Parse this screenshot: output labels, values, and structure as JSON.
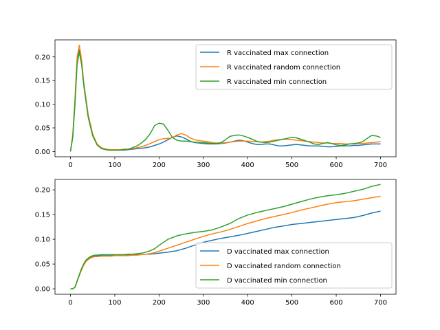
{
  "chart_data": [
    {
      "type": "line",
      "title": "",
      "xlabel": "",
      "ylabel": "",
      "xlim": [
        -35,
        735
      ],
      "ylim": [
        -0.011,
        0.236
      ],
      "xticks": [
        0,
        100,
        200,
        300,
        400,
        500,
        600,
        700
      ],
      "yticks": [
        0.0,
        0.05,
        0.1,
        0.15,
        0.2
      ],
      "ytick_labels": [
        "0.00",
        "0.05",
        "0.10",
        "0.15",
        "0.20"
      ],
      "grid": false,
      "legend_position": "upper right",
      "series": [
        {
          "name": "R vaccinated max connection",
          "color": "#1f77b4",
          "x": [
            0,
            5,
            10,
            15,
            20,
            25,
            30,
            40,
            50,
            60,
            70,
            80,
            90,
            100,
            110,
            120,
            130,
            140,
            150,
            160,
            170,
            180,
            190,
            200,
            210,
            220,
            230,
            240,
            250,
            260,
            270,
            280,
            290,
            300,
            310,
            320,
            330,
            340,
            350,
            360,
            370,
            380,
            390,
            400,
            410,
            420,
            430,
            440,
            450,
            460,
            470,
            480,
            490,
            500,
            510,
            520,
            530,
            540,
            550,
            560,
            570,
            580,
            590,
            600,
            610,
            620,
            630,
            640,
            650,
            660,
            670,
            680,
            690,
            700
          ],
          "values": [
            0.0,
            0.03,
            0.1,
            0.19,
            0.215,
            0.19,
            0.14,
            0.075,
            0.035,
            0.015,
            0.007,
            0.004,
            0.003,
            0.003,
            0.003,
            0.003,
            0.004,
            0.005,
            0.006,
            0.007,
            0.008,
            0.01,
            0.013,
            0.016,
            0.02,
            0.025,
            0.03,
            0.033,
            0.031,
            0.027,
            0.022,
            0.019,
            0.018,
            0.017,
            0.016,
            0.016,
            0.016,
            0.017,
            0.018,
            0.02,
            0.022,
            0.024,
            0.023,
            0.02,
            0.017,
            0.015,
            0.015,
            0.016,
            0.016,
            0.014,
            0.012,
            0.012,
            0.013,
            0.014,
            0.015,
            0.014,
            0.013,
            0.012,
            0.012,
            0.012,
            0.011,
            0.01,
            0.01,
            0.011,
            0.012,
            0.012,
            0.012,
            0.013,
            0.013,
            0.014,
            0.015,
            0.016,
            0.016,
            0.016
          ]
        },
        {
          "name": "R vaccinated random connection",
          "color": "#ff7f0e",
          "x": [
            0,
            5,
            10,
            15,
            20,
            25,
            30,
            40,
            50,
            60,
            70,
            80,
            90,
            100,
            110,
            120,
            130,
            140,
            150,
            160,
            170,
            180,
            190,
            200,
            210,
            220,
            230,
            240,
            250,
            260,
            270,
            280,
            290,
            300,
            310,
            320,
            330,
            340,
            350,
            360,
            370,
            380,
            390,
            400,
            410,
            420,
            430,
            440,
            450,
            460,
            470,
            480,
            490,
            500,
            510,
            520,
            530,
            540,
            550,
            560,
            570,
            580,
            590,
            600,
            610,
            620,
            630,
            640,
            650,
            660,
            670,
            680,
            690,
            700
          ],
          "values": [
            0.0,
            0.035,
            0.11,
            0.2,
            0.225,
            0.195,
            0.145,
            0.078,
            0.037,
            0.016,
            0.008,
            0.005,
            0.004,
            0.004,
            0.004,
            0.005,
            0.005,
            0.006,
            0.008,
            0.01,
            0.013,
            0.017,
            0.021,
            0.025,
            0.027,
            0.028,
            0.029,
            0.035,
            0.038,
            0.035,
            0.029,
            0.025,
            0.023,
            0.022,
            0.021,
            0.019,
            0.018,
            0.018,
            0.019,
            0.02,
            0.021,
            0.022,
            0.022,
            0.022,
            0.021,
            0.021,
            0.02,
            0.021,
            0.022,
            0.024,
            0.025,
            0.026,
            0.026,
            0.025,
            0.024,
            0.023,
            0.022,
            0.021,
            0.02,
            0.019,
            0.018,
            0.018,
            0.017,
            0.017,
            0.017,
            0.016,
            0.016,
            0.016,
            0.017,
            0.017,
            0.018,
            0.019,
            0.02,
            0.021
          ]
        },
        {
          "name": "R vaccinated min connection",
          "color": "#2ca02c",
          "x": [
            0,
            5,
            10,
            15,
            20,
            25,
            30,
            40,
            50,
            60,
            70,
            80,
            90,
            100,
            110,
            120,
            130,
            140,
            150,
            160,
            170,
            180,
            190,
            200,
            210,
            220,
            230,
            240,
            250,
            260,
            270,
            280,
            290,
            300,
            310,
            320,
            330,
            340,
            350,
            360,
            370,
            380,
            390,
            400,
            410,
            420,
            430,
            440,
            450,
            460,
            470,
            480,
            490,
            500,
            510,
            520,
            530,
            540,
            550,
            560,
            570,
            580,
            590,
            600,
            610,
            620,
            630,
            640,
            650,
            660,
            670,
            680,
            690,
            700
          ],
          "values": [
            0.0,
            0.03,
            0.1,
            0.185,
            0.21,
            0.185,
            0.14,
            0.072,
            0.033,
            0.014,
            0.006,
            0.004,
            0.003,
            0.003,
            0.003,
            0.004,
            0.005,
            0.008,
            0.012,
            0.018,
            0.026,
            0.038,
            0.055,
            0.06,
            0.058,
            0.045,
            0.03,
            0.024,
            0.022,
            0.022,
            0.021,
            0.02,
            0.019,
            0.019,
            0.018,
            0.017,
            0.017,
            0.019,
            0.025,
            0.032,
            0.034,
            0.035,
            0.033,
            0.03,
            0.026,
            0.022,
            0.02,
            0.019,
            0.02,
            0.022,
            0.024,
            0.026,
            0.028,
            0.03,
            0.029,
            0.026,
            0.023,
            0.02,
            0.016,
            0.015,
            0.017,
            0.019,
            0.017,
            0.014,
            0.013,
            0.014,
            0.016,
            0.017,
            0.018,
            0.021,
            0.028,
            0.034,
            0.033,
            0.03
          ]
        }
      ]
    },
    {
      "type": "line",
      "title": "",
      "xlabel": "",
      "ylabel": "",
      "xlim": [
        -35,
        735
      ],
      "ylim": [
        -0.011,
        0.221
      ],
      "xticks": [
        0,
        100,
        200,
        300,
        400,
        500,
        600,
        700
      ],
      "yticks": [
        0.0,
        0.05,
        0.1,
        0.15,
        0.2
      ],
      "ytick_labels": [
        "0.00",
        "0.05",
        "0.10",
        "0.15",
        "0.20"
      ],
      "grid": false,
      "legend_position": "lower right",
      "series": [
        {
          "name": "D vaccinated max connection",
          "color": "#1f77b4",
          "x": [
            0,
            5,
            10,
            15,
            20,
            25,
            30,
            35,
            40,
            45,
            50,
            55,
            60,
            70,
            80,
            90,
            100,
            110,
            120,
            130,
            140,
            150,
            160,
            170,
            180,
            190,
            200,
            220,
            240,
            260,
            280,
            300,
            320,
            340,
            360,
            380,
            400,
            420,
            440,
            460,
            480,
            500,
            520,
            540,
            560,
            580,
            600,
            620,
            640,
            660,
            680,
            700
          ],
          "values": [
            0.0,
            0.0,
            0.003,
            0.015,
            0.028,
            0.04,
            0.05,
            0.056,
            0.06,
            0.063,
            0.065,
            0.066,
            0.067,
            0.067,
            0.067,
            0.067,
            0.068,
            0.068,
            0.068,
            0.068,
            0.068,
            0.069,
            0.069,
            0.07,
            0.07,
            0.071,
            0.072,
            0.074,
            0.077,
            0.082,
            0.088,
            0.094,
            0.098,
            0.102,
            0.105,
            0.108,
            0.112,
            0.116,
            0.12,
            0.124,
            0.127,
            0.13,
            0.132,
            0.134,
            0.136,
            0.138,
            0.14,
            0.142,
            0.144,
            0.148,
            0.153,
            0.157
          ]
        },
        {
          "name": "D vaccinated random connection",
          "color": "#ff7f0e",
          "x": [
            0,
            5,
            10,
            15,
            20,
            25,
            30,
            35,
            40,
            45,
            50,
            55,
            60,
            70,
            80,
            90,
            100,
            110,
            120,
            130,
            140,
            150,
            160,
            170,
            180,
            190,
            200,
            220,
            240,
            260,
            280,
            300,
            320,
            340,
            360,
            380,
            400,
            420,
            440,
            460,
            480,
            500,
            520,
            540,
            560,
            580,
            600,
            620,
            640,
            660,
            680,
            700
          ],
          "values": [
            0.0,
            0.0,
            0.003,
            0.015,
            0.027,
            0.038,
            0.048,
            0.055,
            0.059,
            0.062,
            0.064,
            0.065,
            0.065,
            0.066,
            0.066,
            0.066,
            0.067,
            0.067,
            0.067,
            0.067,
            0.068,
            0.068,
            0.069,
            0.07,
            0.071,
            0.073,
            0.076,
            0.082,
            0.088,
            0.094,
            0.1,
            0.106,
            0.111,
            0.115,
            0.12,
            0.126,
            0.132,
            0.137,
            0.142,
            0.146,
            0.15,
            0.154,
            0.159,
            0.163,
            0.167,
            0.171,
            0.174,
            0.176,
            0.178,
            0.181,
            0.184,
            0.187
          ]
        },
        {
          "name": "D vaccinated min connection",
          "color": "#2ca02c",
          "x": [
            0,
            5,
            10,
            15,
            20,
            25,
            30,
            35,
            40,
            45,
            50,
            55,
            60,
            70,
            80,
            90,
            100,
            110,
            120,
            130,
            140,
            150,
            160,
            170,
            180,
            190,
            200,
            220,
            240,
            260,
            280,
            300,
            320,
            340,
            360,
            380,
            400,
            420,
            440,
            460,
            480,
            500,
            520,
            540,
            560,
            580,
            600,
            620,
            640,
            660,
            680,
            700
          ],
          "values": [
            0.0,
            0.0,
            0.003,
            0.016,
            0.029,
            0.041,
            0.051,
            0.058,
            0.062,
            0.065,
            0.067,
            0.068,
            0.068,
            0.069,
            0.069,
            0.069,
            0.069,
            0.069,
            0.069,
            0.07,
            0.07,
            0.071,
            0.072,
            0.074,
            0.077,
            0.081,
            0.088,
            0.1,
            0.107,
            0.111,
            0.114,
            0.116,
            0.119,
            0.125,
            0.132,
            0.142,
            0.149,
            0.154,
            0.158,
            0.162,
            0.166,
            0.171,
            0.176,
            0.181,
            0.185,
            0.188,
            0.19,
            0.193,
            0.197,
            0.201,
            0.207,
            0.211
          ]
        }
      ]
    }
  ]
}
